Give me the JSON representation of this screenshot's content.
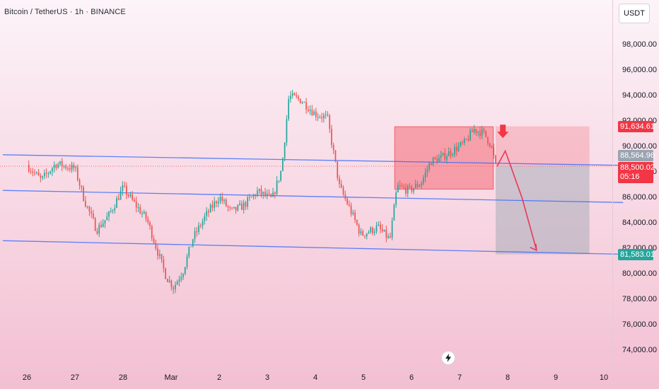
{
  "header": {
    "title": "Bitcoin / TetherUS · 1h · BINANCE",
    "currency": "USDT"
  },
  "colors": {
    "up": "#26a69a",
    "down": "#ef5350",
    "channel": "#2962ff",
    "box": "#f23645",
    "arrow": "#e63956",
    "target_zone": "#9aa4b1"
  },
  "icons": [
    "flash-icon",
    "arrow-down-icon"
  ],
  "chart_data": {
    "type": "line",
    "subtype": "candlestick",
    "title": "Bitcoin / TetherUS · 1h · BINANCE",
    "xlabel": "",
    "ylabel": "",
    "ylim": [
      72000,
      100500
    ],
    "yticks": [
      "98,000.00",
      "96,000.00",
      "94,000.00",
      "92,000.00",
      "90,000.00",
      "88,000.00",
      "86,000.00",
      "84,000.00",
      "82,000.00",
      "80,000.00",
      "78,000.00",
      "76,000.00",
      "74,000.00"
    ],
    "xticks": [
      "26",
      "27",
      "28",
      "Mar",
      "2",
      "3",
      "4",
      "5",
      "6",
      "7",
      "8",
      "9",
      "10"
    ],
    "xlim": [
      -0.5,
      12.6
    ],
    "grid": false,
    "price_labels": {
      "high_mark": "91,634.61",
      "upper_level": "88,564.96",
      "last_price": "88,500.02",
      "countdown": "05:16",
      "target": "81,583.01"
    },
    "series": [
      {
        "approx_close": [
          [
            0.0,
            88600
          ],
          [
            0.3,
            87400
          ],
          [
            0.6,
            88700
          ],
          [
            1.0,
            88300
          ],
          [
            1.2,
            85800
          ],
          [
            1.45,
            83500
          ],
          [
            1.7,
            84600
          ],
          [
            2.0,
            86800
          ],
          [
            2.25,
            85500
          ],
          [
            2.5,
            84300
          ],
          [
            2.7,
            82000
          ],
          [
            2.9,
            79800
          ],
          [
            3.05,
            79000
          ],
          [
            3.25,
            80300
          ],
          [
            3.45,
            82800
          ],
          [
            3.7,
            84500
          ],
          [
            4.0,
            86100
          ],
          [
            4.25,
            84900
          ],
          [
            4.5,
            85400
          ],
          [
            4.8,
            86500
          ],
          [
            5.1,
            85900
          ],
          [
            5.3,
            88300
          ],
          [
            5.45,
            94000
          ],
          [
            5.7,
            93700
          ],
          [
            6.0,
            92600
          ],
          [
            6.25,
            92300
          ],
          [
            6.5,
            86900
          ],
          [
            6.7,
            85300
          ],
          [
            6.95,
            83100
          ],
          [
            7.3,
            83700
          ],
          [
            7.55,
            82700
          ],
          [
            7.7,
            86900
          ],
          [
            7.95,
            86600
          ],
          [
            8.2,
            87200
          ],
          [
            8.4,
            88900
          ],
          [
            8.6,
            89100
          ],
          [
            8.8,
            89600
          ],
          [
            9.1,
            90300
          ],
          [
            9.3,
            91400
          ],
          [
            9.5,
            91100
          ],
          [
            9.65,
            90200
          ],
          [
            9.75,
            88500
          ]
        ]
      }
    ],
    "levels": [
      {
        "name": "resistance",
        "x0": -0.5,
        "y0": 89400,
        "x1": 12.4,
        "y1": 88565
      },
      {
        "name": "middle",
        "x0": -0.5,
        "y0": 86600,
        "x1": 12.4,
        "y1": 85650
      },
      {
        "name": "support",
        "x0": -0.5,
        "y0": 82650,
        "x1": 12.4,
        "y1": 81583
      }
    ],
    "zone": {
      "x0": 7.65,
      "x1": 9.7,
      "y0": 86700,
      "y1": 91600
    },
    "projection": {
      "profit_zone": {
        "x0": 9.75,
        "x1": 11.7,
        "y0": 81583,
        "y1": 88500
      },
      "stop_zone": {
        "x0": 9.75,
        "x1": 11.7,
        "y0": 88500,
        "y1": 91634
      },
      "path": [
        [
          9.78,
          88500
        ],
        [
          9.95,
          89700
        ],
        [
          10.3,
          86000
        ],
        [
          10.6,
          81900
        ]
      ]
    },
    "last_price": 88500,
    "entry_marker": {
      "x": 9.9,
      "y": 91100
    }
  }
}
